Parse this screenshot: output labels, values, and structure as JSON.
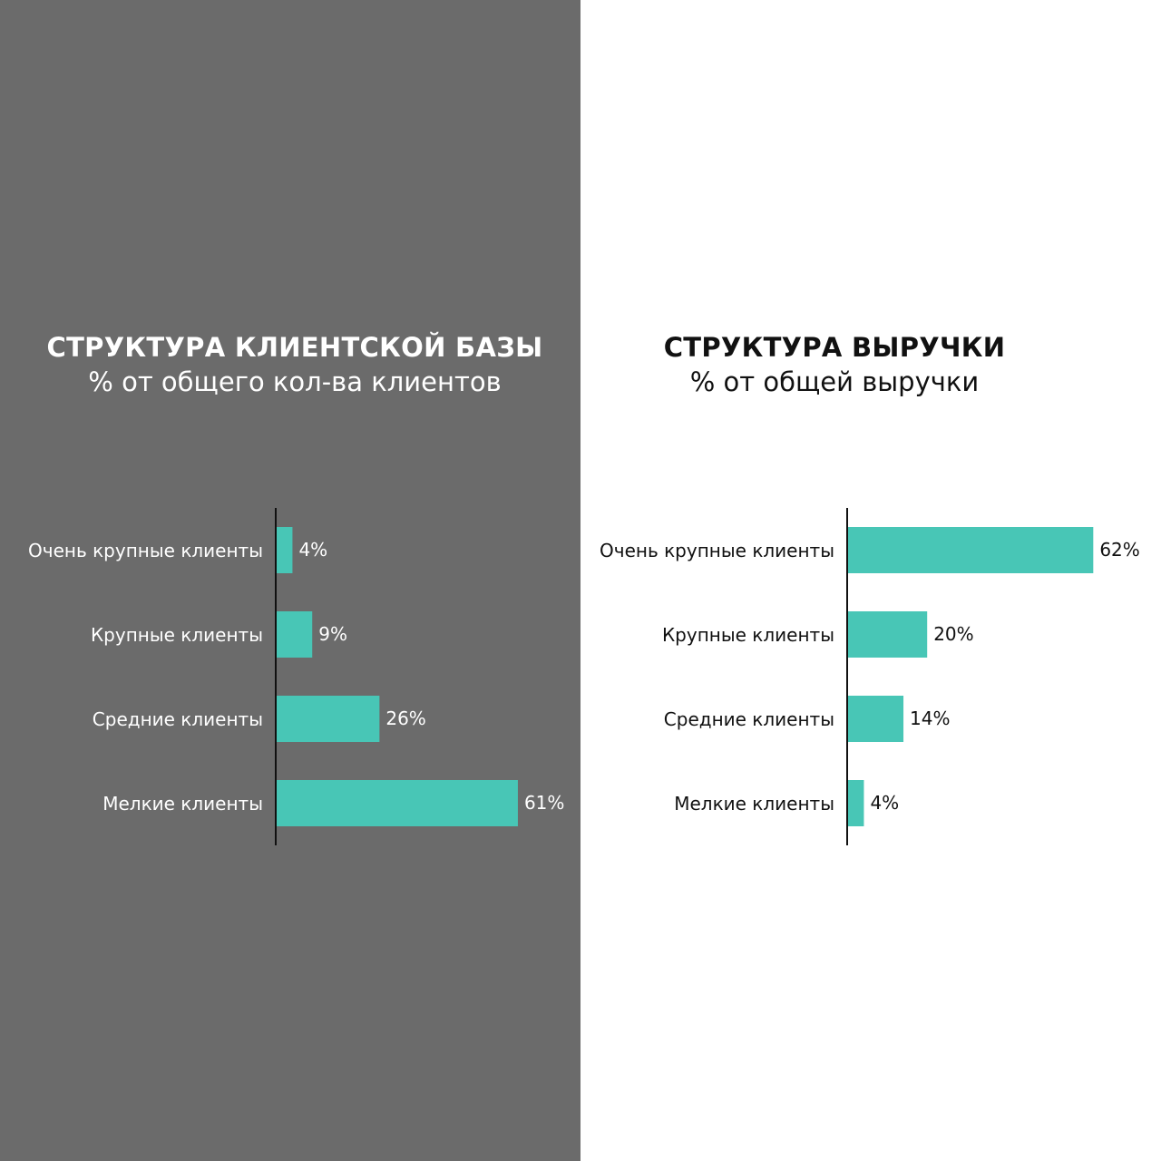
{
  "colors": {
    "left_bg": "#6b6b6b",
    "right_bg": "#ffffff",
    "bar": "#48c6b6"
  },
  "chart_data": [
    {
      "type": "bar",
      "orientation": "horizontal",
      "title": "СТРУКТУРА КЛИЕНТСКОЙ БАЗЫ",
      "subtitle": "% от общего кол-ва клиентов",
      "categories": [
        "Очень крупные клиенты",
        "Крупные клиенты",
        "Средние клиенты",
        "Мелкие клиенты"
      ],
      "values": [
        4,
        9,
        26,
        61
      ],
      "labels": [
        "4%",
        "9%",
        "26%",
        "61%"
      ],
      "grid": false
    },
    {
      "type": "bar",
      "orientation": "horizontal",
      "title": "СТРУКТУРА ВЫРУЧКИ",
      "subtitle": "% от общей выручки",
      "categories": [
        "Очень крупные клиенты",
        "Крупные клиенты",
        "Средние клиенты",
        "Мелкие клиенты"
      ],
      "values": [
        62,
        20,
        14,
        4
      ],
      "labels": [
        "62%",
        "20%",
        "14%",
        "4%"
      ],
      "grid": false
    }
  ]
}
